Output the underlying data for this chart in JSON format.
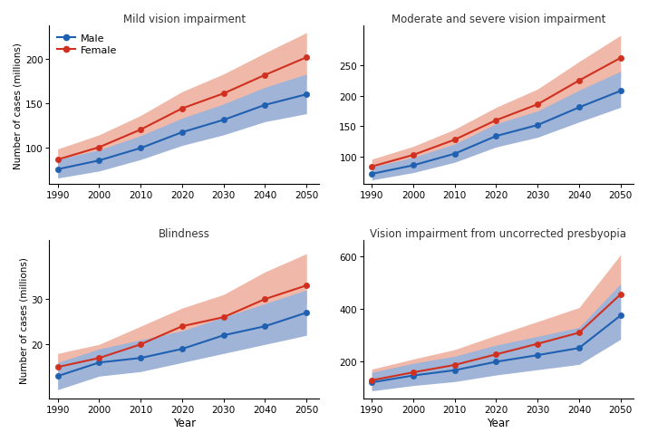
{
  "years": [
    1990,
    2000,
    2010,
    2020,
    2030,
    2040,
    2050
  ],
  "plots": [
    {
      "title": "Mild vision impairment",
      "male_mean": [
        75,
        85,
        99,
        117,
        131,
        148,
        160
      ],
      "male_lo": [
        65,
        73,
        86,
        102,
        114,
        129,
        138
      ],
      "male_hi": [
        86,
        97,
        113,
        133,
        149,
        168,
        183
      ],
      "female_mean": [
        86,
        100,
        120,
        144,
        161,
        182,
        202
      ],
      "female_lo": [
        75,
        87,
        105,
        126,
        141,
        159,
        177
      ],
      "female_hi": [
        98,
        114,
        136,
        163,
        183,
        207,
        230
      ],
      "yticks": [
        100,
        150,
        200
      ],
      "ylim": [
        58,
        238
      ]
    },
    {
      "title": "Moderate and severe vision impairment",
      "male_mean": [
        72,
        86,
        105,
        134,
        152,
        181,
        208
      ],
      "male_lo": [
        62,
        74,
        91,
        116,
        132,
        157,
        181
      ],
      "male_hi": [
        83,
        99,
        121,
        154,
        175,
        209,
        240
      ],
      "female_mean": [
        84,
        103,
        128,
        160,
        186,
        225,
        262
      ],
      "female_lo": [
        73,
        90,
        112,
        140,
        163,
        197,
        230
      ],
      "female_hi": [
        96,
        117,
        145,
        181,
        211,
        256,
        299
      ],
      "yticks": [
        100,
        150,
        200,
        250
      ],
      "ylim": [
        55,
        315
      ]
    },
    {
      "title": "Blindness",
      "male_mean": [
        13,
        16,
        17,
        19,
        22,
        24,
        27
      ],
      "male_lo": [
        10,
        13,
        14,
        16,
        18,
        20,
        22
      ],
      "male_hi": [
        16,
        19,
        21,
        23,
        26,
        29,
        32
      ],
      "female_mean": [
        15,
        17,
        20,
        24,
        26,
        30,
        33
      ],
      "female_lo": [
        12,
        14,
        17,
        20,
        23,
        26,
        29
      ],
      "female_hi": [
        18,
        20,
        24,
        28,
        31,
        36,
        40
      ],
      "yticks": [
        20,
        30
      ],
      "ylim": [
        8,
        43
      ]
    },
    {
      "title": "Vision impairment from uncorrected presbyopia",
      "male_mean": [
        122,
        148,
        168,
        200,
        225,
        252,
        375
      ],
      "male_lo": [
        90,
        110,
        125,
        150,
        170,
        190,
        285
      ],
      "male_hi": [
        160,
        194,
        221,
        263,
        296,
        330,
        495
      ],
      "female_mean": [
        130,
        160,
        188,
        228,
        268,
        310,
        455
      ],
      "female_lo": [
        95,
        118,
        140,
        170,
        200,
        232,
        345
      ],
      "female_hi": [
        172,
        210,
        246,
        300,
        352,
        405,
        605
      ],
      "yticks": [
        200,
        400,
        600
      ],
      "ylim": [
        60,
        660
      ]
    }
  ],
  "male_color": "#2060b0",
  "female_color": "#d03020",
  "male_fill": "#a0b4d8",
  "female_fill": "#f0b8a8",
  "xlabel": "Year",
  "ylabel": "Number of cases (millions)",
  "xticks": [
    1990,
    2000,
    2010,
    2020,
    2030,
    2040,
    2050
  ]
}
